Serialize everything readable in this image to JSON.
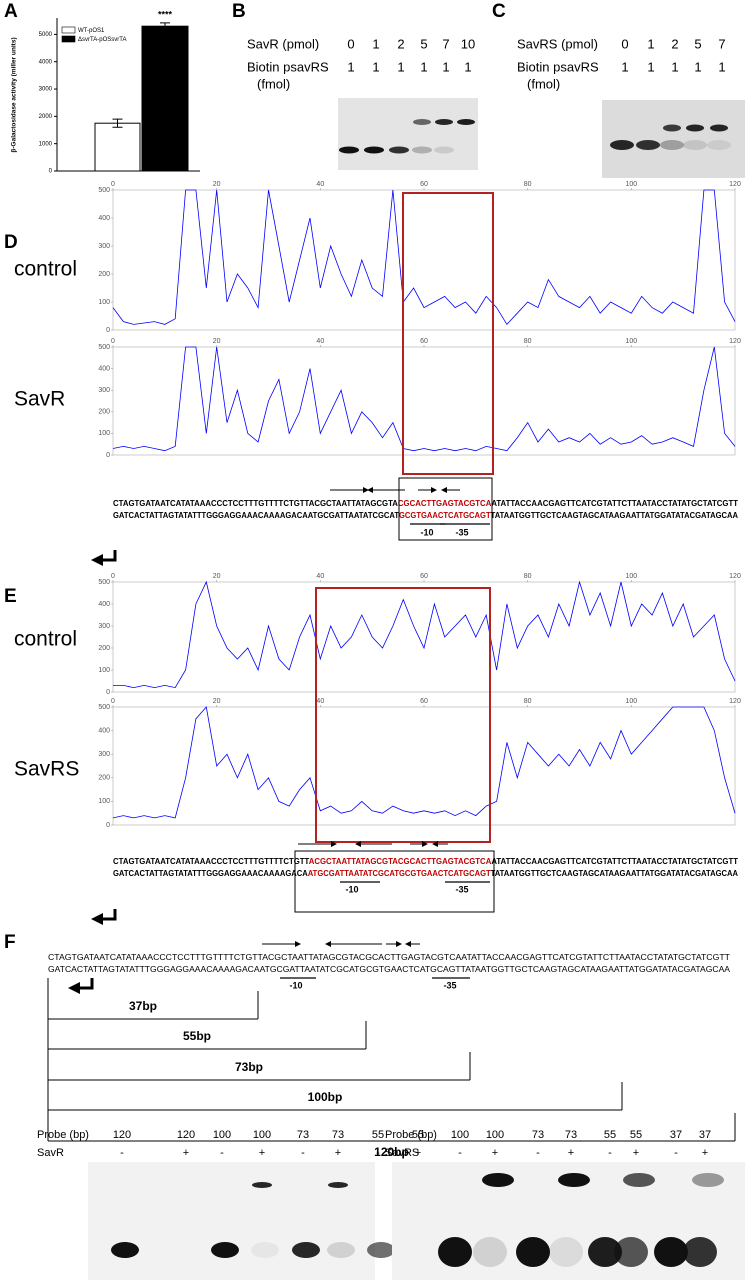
{
  "panel_labels": [
    "A",
    "B",
    "C",
    "D",
    "E",
    "F"
  ],
  "chart_data": [
    {
      "type": "bar",
      "ylabel": "β-Galactosidase activity (miller units)",
      "annotation": "****",
      "ylim": [
        0,
        5600
      ],
      "yticks": [
        0,
        1000,
        2000,
        3000,
        4000,
        5000
      ],
      "series": [
        {
          "name": "WT-pOS1",
          "color": "#ffffff",
          "values": [
            1750
          ],
          "errors": [
            150
          ]
        },
        {
          "name": "ΔsvrTA-pOSsvrTA",
          "color": "#000000",
          "values": [
            5300
          ],
          "errors": [
            120
          ]
        }
      ]
    },
    {
      "type": "line",
      "xlim": [
        0,
        120
      ],
      "xticks": [
        0,
        20,
        40,
        60,
        80,
        100,
        120
      ],
      "ylim": [
        0,
        500
      ],
      "yticks": [
        0,
        100,
        200,
        300,
        400,
        500
      ],
      "x": [
        0,
        2,
        4,
        6,
        8,
        10,
        12,
        14,
        16,
        18,
        20,
        22,
        24,
        26,
        28,
        30,
        32,
        34,
        36,
        38,
        40,
        42,
        44,
        46,
        48,
        50,
        52,
        54,
        56,
        58,
        60,
        62,
        64,
        66,
        68,
        70,
        72,
        74,
        76,
        78,
        80,
        82,
        84,
        86,
        88,
        90,
        92,
        94,
        96,
        98,
        100,
        102,
        104,
        106,
        108,
        110,
        112,
        114,
        116,
        118,
        120
      ],
      "series": [
        {
          "name": "control",
          "color": "#0000ff",
          "values": [
            80,
            30,
            20,
            25,
            30,
            20,
            40,
            500,
            500,
            150,
            500,
            100,
            200,
            150,
            80,
            500,
            300,
            100,
            250,
            400,
            150,
            300,
            200,
            120,
            250,
            150,
            120,
            500,
            100,
            150,
            80,
            100,
            120,
            80,
            100,
            60,
            120,
            80,
            20,
            60,
            100,
            80,
            180,
            120,
            100,
            80,
            120,
            60,
            100,
            80,
            60,
            120,
            80,
            60,
            100,
            80,
            60,
            500,
            500,
            100,
            30
          ]
        },
        {
          "name": "SavR",
          "color": "#0000ff",
          "values": [
            30,
            40,
            30,
            40,
            30,
            20,
            40,
            500,
            500,
            100,
            500,
            150,
            300,
            100,
            60,
            250,
            350,
            100,
            200,
            400,
            100,
            200,
            300,
            100,
            200,
            150,
            80,
            150,
            30,
            20,
            30,
            20,
            30,
            20,
            30,
            20,
            40,
            30,
            20,
            80,
            150,
            60,
            120,
            60,
            80,
            60,
            100,
            50,
            80,
            50,
            60,
            90,
            50,
            60,
            80,
            60,
            40,
            300,
            500,
            100,
            40
          ]
        }
      ]
    },
    {
      "type": "line",
      "xlim": [
        0,
        120
      ],
      "xticks": [
        0,
        20,
        40,
        60,
        80,
        100,
        120
      ],
      "ylim": [
        0,
        500
      ],
      "yticks": [
        0,
        100,
        200,
        300,
        400,
        500
      ],
      "x": [
        0,
        2,
        4,
        6,
        8,
        10,
        12,
        14,
        16,
        18,
        20,
        22,
        24,
        26,
        28,
        30,
        32,
        34,
        36,
        38,
        40,
        42,
        44,
        46,
        48,
        50,
        52,
        54,
        56,
        58,
        60,
        62,
        64,
        66,
        68,
        70,
        72,
        74,
        76,
        78,
        80,
        82,
        84,
        86,
        88,
        90,
        92,
        94,
        96,
        98,
        100,
        102,
        104,
        106,
        108,
        110,
        112,
        114,
        116,
        118,
        120
      ],
      "series": [
        {
          "name": "control",
          "color": "#0000ff",
          "values": [
            30,
            30,
            20,
            30,
            20,
            30,
            20,
            100,
            400,
            500,
            300,
            200,
            150,
            200,
            100,
            300,
            150,
            100,
            250,
            350,
            150,
            300,
            200,
            250,
            350,
            250,
            200,
            300,
            420,
            300,
            200,
            400,
            250,
            300,
            350,
            250,
            350,
            100,
            400,
            200,
            300,
            350,
            250,
            400,
            300,
            500,
            350,
            450,
            300,
            500,
            300,
            400,
            350,
            450,
            300,
            400,
            250,
            300,
            350,
            150,
            50
          ]
        },
        {
          "name": "SavRS",
          "color": "#0000ff",
          "values": [
            30,
            40,
            30,
            40,
            30,
            40,
            30,
            200,
            450,
            500,
            250,
            300,
            200,
            300,
            150,
            200,
            100,
            80,
            150,
            200,
            60,
            80,
            50,
            60,
            100,
            60,
            50,
            80,
            60,
            50,
            60,
            50,
            60,
            40,
            60,
            40,
            80,
            100,
            350,
            200,
            350,
            300,
            250,
            300,
            250,
            320,
            250,
            350,
            280,
            400,
            300,
            350,
            400,
            450,
            500,
            500,
            500,
            500,
            400,
            200,
            50
          ]
        }
      ]
    }
  ],
  "gels": {
    "B": {
      "rows": [
        {
          "label": "SavR (pmol)",
          "values": [
            0,
            1,
            2,
            5,
            7,
            10
          ]
        },
        {
          "label": "Biotin psavRS",
          "values": [
            1,
            1,
            1,
            1,
            1,
            1
          ]
        }
      ],
      "note": "(fmol)"
    },
    "C": {
      "rows": [
        {
          "label": "SavRS (pmol)",
          "values": [
            0,
            1,
            2,
            5,
            7
          ]
        },
        {
          "label": "Biotin psavRS",
          "values": [
            1,
            1,
            1,
            1,
            1
          ]
        }
      ],
      "note": "(fmol)"
    },
    "F_left": {
      "rows": [
        {
          "label": "Probe (bp)",
          "values": [
            120,
            120,
            100,
            100,
            73,
            73,
            55,
            55
          ]
        },
        {
          "label": "SavR",
          "values": [
            "-",
            "+",
            "-",
            "+",
            "-",
            "+",
            "-",
            "+"
          ]
        }
      ]
    },
    "F_right": {
      "rows": [
        {
          "label": "Probe (bp)",
          "values": [
            100,
            100,
            73,
            73,
            55,
            55,
            37,
            37
          ]
        },
        {
          "label": "SavRS",
          "values": [
            "-",
            "+",
            "-",
            "+",
            "-",
            "+",
            "-",
            "+"
          ]
        }
      ]
    }
  },
  "sequences": {
    "D": {
      "top": [
        "CTAGTGATAATCATATAAACCCTCCTTTGTTTTCTGTTACGCTAATTATAGCGTA",
        "CGCACTTGAGTACGTCA",
        "ATATTACCAACGAGTTCATCGTATTCTTAATACCTATATGCTATCGTT"
      ],
      "bottom": [
        "GATCACTATTAGTATATTTGGGAGGAAACAAAAGACAATGCGATTAATATCGCAT",
        "GCGTGAACTCATGCAGT",
        "TATAATGGTTGCTCAAGTAGCATAAGAATTATGGATATACGATAGCAA"
      ],
      "minus10": "-10",
      "minus35": "-35"
    },
    "E": {
      "top": [
        "CTAGTGATAATCATATAAACCCTCCTTTGTTTTCTGTT",
        "ACGCTAATTATAGCGTACGCACTTGAGTACGTCA",
        "ATATTACCAACGAGTTCATCGTATTCTTAATACCTATATGCTATCGTT"
      ],
      "bottom": [
        "GATCACTATTAGTATATTTGGGAGGAAACAAAAGACA",
        "ATGCGATTAATATCGCATGCGTGAACTCATGCAGT",
        "TATAATGGTTGCTCAAGTAGCATAAGAATTATGGATATACGATAGCAA"
      ],
      "minus10": "-10",
      "minus35": "-35"
    },
    "F": {
      "top": [
        "CTAGTGATAATCATATAAACCCTCCTTTGTTTTCTGTTACGCTAATTATAGCGTACGCACTTGAGTACGTCAATATTACCAACGAGTTCATCGTATTCTTAATACCTATATGCTATCGTT"
      ],
      "bottom": [
        "GATCACTATTAGTATATTTGGGAGGAAACAAAAGACAATGCGATTAATATCGCATGCGTGAACTCATGCAGTTATAATGGTTGCTCAAGTAGCATAAGAATTATGGATATACGATAGCAA"
      ],
      "minus10": "-10",
      "minus35": "-35"
    }
  },
  "fragments": [
    "37bp",
    "55bp",
    "73bp",
    "100bp",
    "120bp"
  ]
}
